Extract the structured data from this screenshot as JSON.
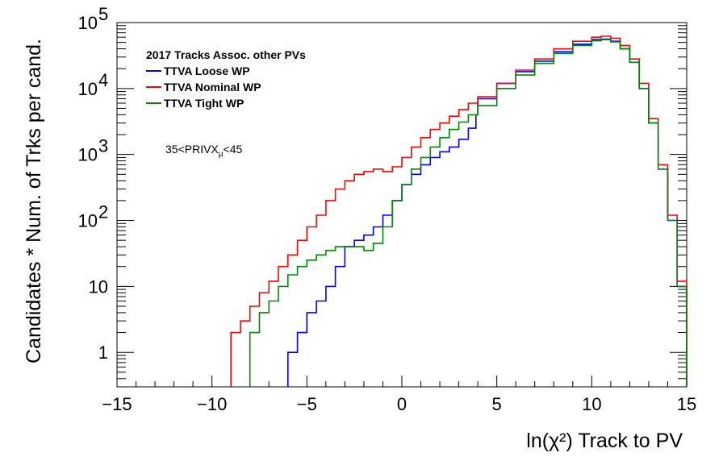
{
  "chart_data": {
    "type": "line",
    "step": true,
    "xlabel": "ln(χ²) Track to PV",
    "ylabel": "Candidates * Num. of Trks per cand.",
    "xlim": [
      -15,
      15
    ],
    "ylim": [
      0.3,
      100000
    ],
    "yscale": "log",
    "grid": false,
    "x_ticks": [
      "−15",
      "−10",
      "−5",
      "0",
      "5",
      "10",
      "15"
    ],
    "y_ticks": [
      {
        "value": 1,
        "base": "1",
        "exp": ""
      },
      {
        "value": 10,
        "base": "10",
        "exp": ""
      },
      {
        "value": 100,
        "base": "10",
        "exp": "2"
      },
      {
        "value": 1000,
        "base": "10",
        "exp": "3"
      },
      {
        "value": 10000,
        "base": "10",
        "exp": "4"
      },
      {
        "value": 100000,
        "base": "10",
        "exp": "5"
      }
    ],
    "legend": {
      "title": "2017 Tracks Assoc. other PVs",
      "placement": "top-left"
    },
    "annotation": {
      "prefix": "35<PRIVX",
      "subscript": "μ",
      "suffix": "<45"
    },
    "series": [
      {
        "name": "TTVA Loose WP",
        "color": "#0000ff",
        "x": [
          -6,
          -5.5,
          -5,
          -4.5,
          -4,
          -3.5,
          -3,
          -2.5,
          -2,
          -1.5,
          -1,
          -0.5,
          0,
          0.5,
          1,
          1.5,
          2,
          2.5,
          3,
          3.5,
          3.9,
          4,
          5,
          6,
          7,
          8,
          9,
          10,
          10.5,
          11,
          11.5,
          12,
          12.5,
          13,
          13.5,
          14,
          14.5,
          15
        ],
        "y": [
          1,
          2,
          4,
          6,
          10,
          20,
          40,
          50,
          60,
          80,
          120,
          200,
          350,
          500,
          700,
          900,
          1100,
          1300,
          1700,
          2500,
          4000,
          7000,
          12000,
          18000,
          26000,
          36000,
          47000,
          55000,
          56000,
          52000,
          40000,
          25000,
          10000,
          3000,
          600,
          100,
          10,
          0.3
        ]
      },
      {
        "name": "TTVA Nominal WP",
        "color": "#ff0000",
        "x": [
          -9,
          -8.5,
          -8,
          -7.5,
          -7,
          -6.5,
          -6,
          -5.5,
          -5,
          -4.5,
          -4,
          -3.5,
          -3,
          -2.5,
          -2,
          -1.5,
          -1,
          -0.5,
          0,
          0.5,
          1,
          1.5,
          2,
          2.5,
          3,
          3.5,
          4,
          5,
          6,
          7,
          8,
          9,
          10,
          10.5,
          11,
          11.5,
          12,
          12.5,
          13,
          13.5,
          14,
          14.5,
          15
        ],
        "y": [
          2,
          3,
          5,
          8,
          12,
          20,
          30,
          50,
          80,
          120,
          200,
          300,
          400,
          500,
          550,
          600,
          550,
          650,
          900,
          1300,
          1800,
          2400,
          3000,
          3800,
          4800,
          6000,
          7500,
          12000,
          19000,
          28000,
          40000,
          52000,
          60000,
          62000,
          58000,
          45000,
          28000,
          12000,
          3500,
          700,
          120,
          12,
          0.3
        ]
      },
      {
        "name": "TTVA Tight WP",
        "color": "#008800",
        "x": [
          -8,
          -7.5,
          -7,
          -6.5,
          -6,
          -5.5,
          -5,
          -4.5,
          -4,
          -3.5,
          -3,
          -2.5,
          -2,
          -1.5,
          -1,
          -0.5,
          0,
          0.5,
          1,
          1.5,
          2,
          2.5,
          3,
          3.5,
          4,
          5,
          6,
          7,
          8,
          9,
          10,
          10.5,
          11,
          11.5,
          12,
          12.5,
          13,
          13.5,
          14,
          14.5,
          15
        ],
        "y": [
          2,
          4,
          6,
          10,
          15,
          20,
          25,
          30,
          35,
          40,
          40,
          40,
          35,
          45,
          80,
          200,
          350,
          600,
          900,
          1300,
          1800,
          2400,
          3100,
          4000,
          5500,
          10000,
          16000,
          24000,
          34000,
          45000,
          53000,
          55000,
          51000,
          40000,
          25000,
          10000,
          3000,
          600,
          100,
          10,
          0.3
        ]
      }
    ]
  }
}
